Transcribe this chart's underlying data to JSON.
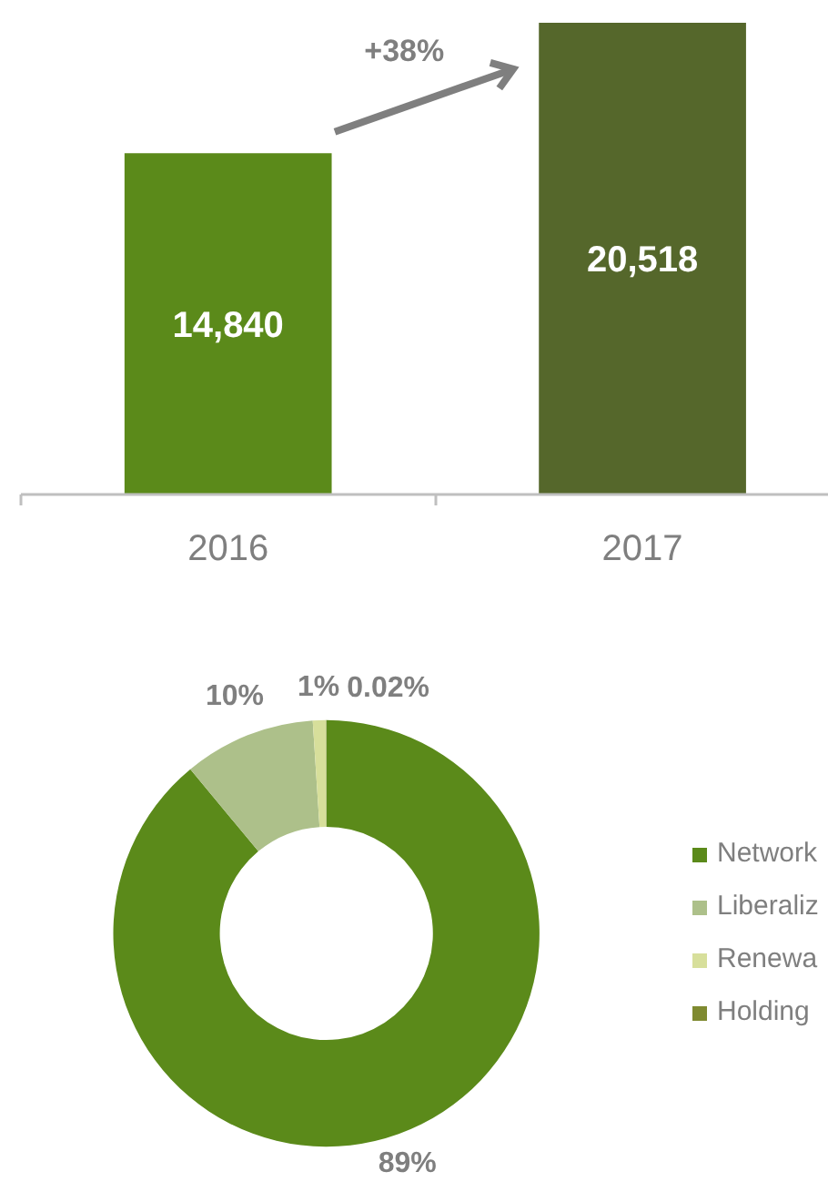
{
  "chart_data": [
    {
      "type": "bar",
      "categories": [
        "2016",
        "2017"
      ],
      "values": [
        14840,
        20518
      ],
      "colors": [
        "#5b8a1a",
        "#55672b"
      ],
      "value_labels": [
        "14,840",
        "20,518"
      ],
      "annotations": [
        "+38%"
      ]
    },
    {
      "type": "donut",
      "categories": [
        "Network",
        "Liberaliz",
        "Renewa",
        "Holding"
      ],
      "values": [
        89,
        10,
        1,
        0.02
      ],
      "colors": [
        "#5b8a1a",
        "#adc08a",
        "#d7df9b",
        "#7f8a30"
      ],
      "value_labels": [
        "89%",
        "10%",
        "1%",
        "0.02%"
      ],
      "legend": "right"
    }
  ]
}
